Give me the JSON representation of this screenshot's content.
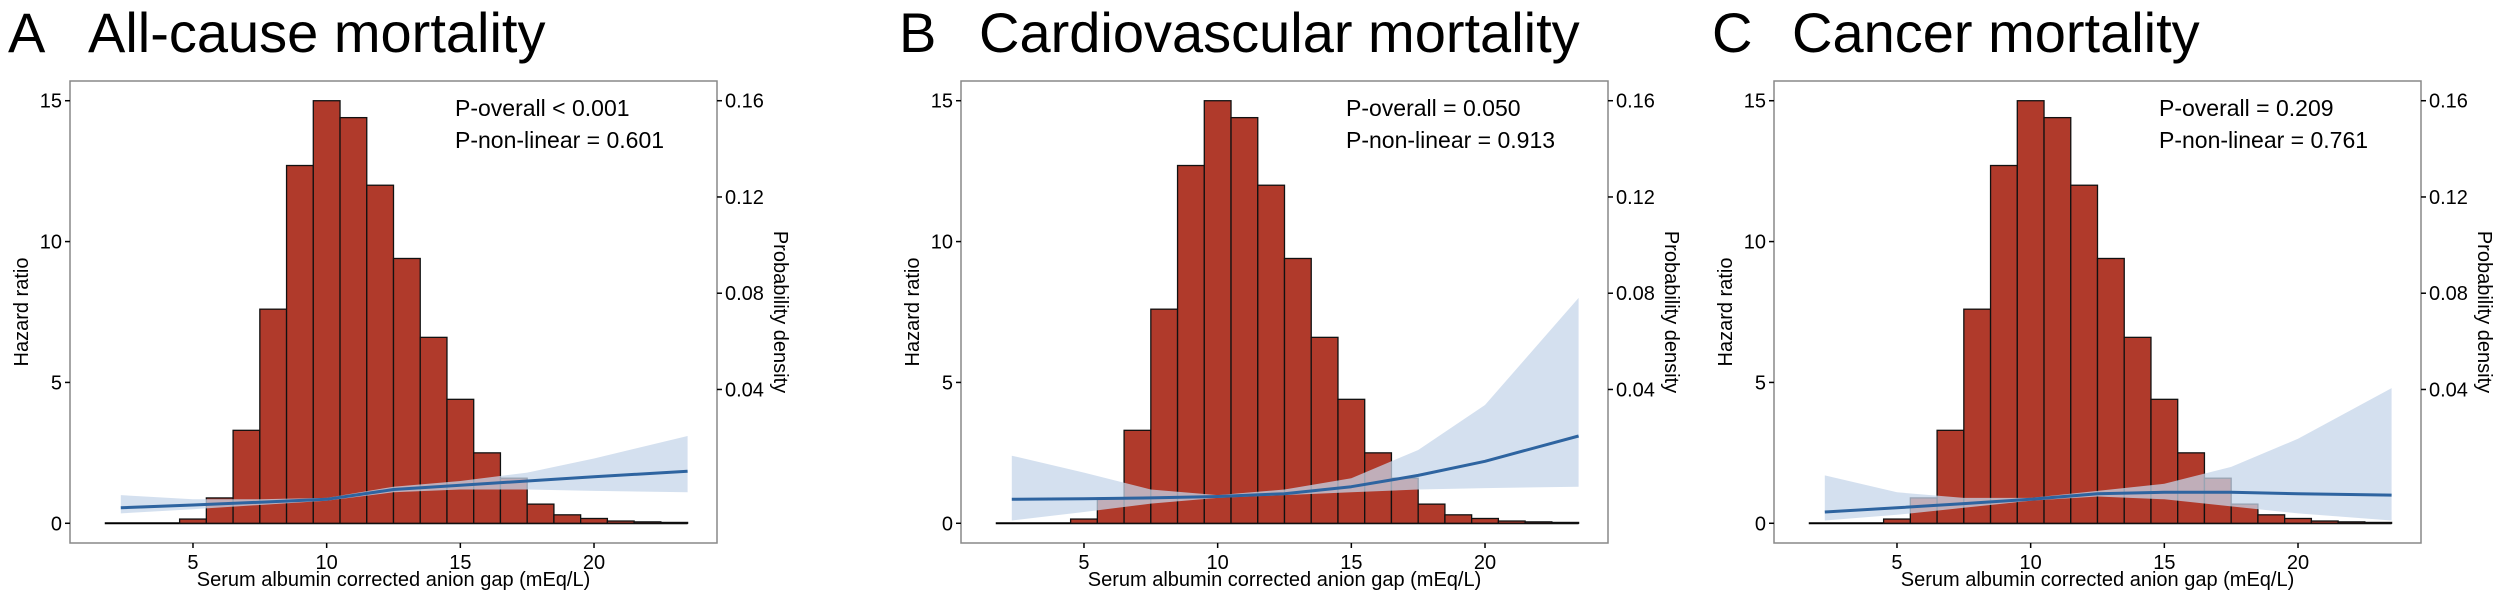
{
  "chart_data": [
    {
      "type": "histogram+line",
      "letter": "A",
      "title": "All-cause mortality",
      "xlabel": "Serum albumin corrected anion gap (mEq/L)",
      "ylabel": "Hazard ratio",
      "y2label": "Probability density",
      "xticks": [
        "5",
        "10",
        "15",
        "20"
      ],
      "yticks": [
        "0",
        "5",
        "10",
        "15"
      ],
      "y2ticks": [
        "0.04",
        "0.08",
        "0.12",
        "0.16"
      ],
      "annotations": [
        "P-overall < 0.001",
        "P-non-linear = 0.601"
      ],
      "hist_bins": [
        5,
        6,
        7,
        8,
        9,
        10,
        11,
        12,
        13,
        14,
        15,
        16,
        17,
        18,
        19,
        20,
        21,
        22,
        23
      ],
      "hist_heights_hr_scale": [
        0.15,
        0.9,
        3.3,
        7.6,
        12.7,
        15.0,
        14.4,
        12.0,
        9.4,
        6.6,
        4.4,
        2.5,
        1.6,
        0.68,
        0.3,
        0.17,
        0.08,
        0.05,
        0.03
      ],
      "curve": {
        "x": [
          2.3,
          5,
          7.5,
          10,
          12.5,
          15,
          17.5,
          20,
          23.5
        ],
        "hr": [
          0.55,
          0.65,
          0.75,
          0.85,
          1.2,
          1.35,
          1.5,
          1.65,
          1.85
        ],
        "lo": [
          0.35,
          0.5,
          0.65,
          0.8,
          1.1,
          1.2,
          1.2,
          1.15,
          1.1
        ],
        "hi": [
          1.0,
          0.85,
          0.85,
          0.9,
          1.3,
          1.5,
          1.8,
          2.3,
          3.1
        ]
      }
    },
    {
      "type": "histogram+line",
      "letter": "B",
      "title": "Cardiovascular mortality",
      "xlabel": "Serum albumin corrected anion gap (mEq/L)",
      "ylabel": "Hazard ratio",
      "y2label": "Probability density",
      "xticks": [
        "5",
        "10",
        "15",
        "20"
      ],
      "yticks": [
        "0",
        "5",
        "10",
        "15"
      ],
      "y2ticks": [
        "0.04",
        "0.08",
        "0.12",
        "0.16"
      ],
      "annotations": [
        "P-overall = 0.050",
        "P-non-linear = 0.913"
      ],
      "hist_bins": [
        5,
        6,
        7,
        8,
        9,
        10,
        11,
        12,
        13,
        14,
        15,
        16,
        17,
        18,
        19,
        20,
        21,
        22,
        23
      ],
      "hist_heights_hr_scale": [
        0.15,
        0.9,
        3.3,
        7.6,
        12.7,
        15.0,
        14.4,
        12.0,
        9.4,
        6.6,
        4.4,
        2.5,
        1.6,
        0.68,
        0.3,
        0.17,
        0.08,
        0.05,
        0.03
      ],
      "curve": {
        "x": [
          2.3,
          5,
          7.5,
          10,
          12.5,
          15,
          17.5,
          20,
          23.5
        ],
        "hr": [
          0.85,
          0.87,
          0.9,
          0.95,
          1.05,
          1.3,
          1.7,
          2.2,
          3.1
        ],
        "lo": [
          0.1,
          0.4,
          0.7,
          0.9,
          1.0,
          1.1,
          1.2,
          1.25,
          1.3
        ],
        "hi": [
          2.4,
          1.8,
          1.2,
          1.0,
          1.2,
          1.6,
          2.6,
          4.2,
          8.0
        ]
      }
    },
    {
      "type": "histogram+line",
      "letter": "C",
      "title": "Cancer mortality",
      "xlabel": "Serum albumin corrected anion gap (mEq/L)",
      "ylabel": "Hazard ratio",
      "y2label": "Probability density",
      "xticks": [
        "5",
        "10",
        "15",
        "20"
      ],
      "yticks": [
        "0",
        "5",
        "10",
        "15"
      ],
      "y2ticks": [
        "0.04",
        "0.08",
        "0.12",
        "0.16"
      ],
      "annotations": [
        "P-overall = 0.209",
        "P-non-linear = 0.761"
      ],
      "hist_bins": [
        5,
        6,
        7,
        8,
        9,
        10,
        11,
        12,
        13,
        14,
        15,
        16,
        17,
        18,
        19,
        20,
        21,
        22,
        23
      ],
      "hist_heights_hr_scale": [
        0.15,
        0.9,
        3.3,
        7.6,
        12.7,
        15.0,
        14.4,
        12.0,
        9.4,
        6.6,
        4.4,
        2.5,
        1.6,
        0.68,
        0.3,
        0.17,
        0.08,
        0.05,
        0.03
      ],
      "curve": {
        "x": [
          2.3,
          5,
          7.5,
          10,
          12.5,
          15,
          17.5,
          20,
          23.5
        ],
        "hr": [
          0.4,
          0.55,
          0.7,
          0.85,
          1.05,
          1.1,
          1.1,
          1.05,
          1.0
        ],
        "lo": [
          0.1,
          0.3,
          0.55,
          0.8,
          0.95,
          0.85,
          0.6,
          0.35,
          0.1
        ],
        "hi": [
          1.7,
          1.1,
          0.9,
          0.9,
          1.15,
          1.4,
          2.0,
          3.0,
          4.8
        ]
      }
    }
  ],
  "axes": {
    "xlim": [
      0.4,
      24.6
    ],
    "ylim": [
      -0.7,
      15.7
    ],
    "y2_map": {
      "density": [
        0.04,
        0.16
      ],
      "hr": [
        4.75,
        15.0
      ]
    }
  },
  "colors": {
    "bar": "#B03A2B",
    "curve": "#2E64A0",
    "ci": "#C5D5EA",
    "frame": "#888888"
  }
}
